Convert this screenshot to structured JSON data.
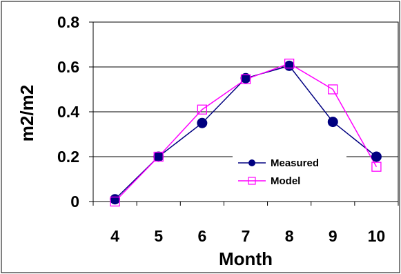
{
  "chart_data": {
    "type": "line",
    "xlabel": "Month",
    "ylabel": "m2/m2",
    "x": [
      4,
      5,
      6,
      7,
      8,
      9,
      10
    ],
    "categories": [
      "4",
      "5",
      "6",
      "7",
      "8",
      "9",
      "10"
    ],
    "ylim": [
      0,
      0.8
    ],
    "yticks": [
      "0",
      "0.2",
      "0.4",
      "0.6",
      "0.8"
    ],
    "grid": true,
    "legend_position": "bottom-right",
    "series": [
      {
        "name": "Measured",
        "values": [
          0.01,
          0.2,
          0.35,
          0.55,
          0.605,
          0.355,
          0.2
        ],
        "color": "#000080",
        "marker": "filled-circle"
      },
      {
        "name": "Model",
        "values": [
          0.0,
          0.2,
          0.41,
          0.545,
          0.615,
          0.5,
          0.155
        ],
        "color": "#ff00ff",
        "marker": "open-square"
      }
    ]
  }
}
